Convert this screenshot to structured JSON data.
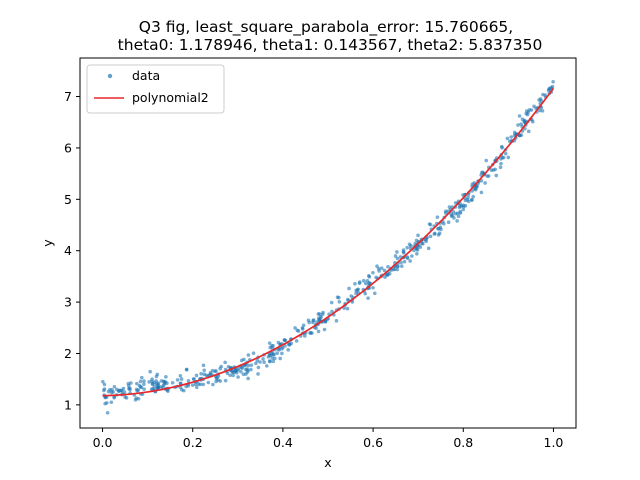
{
  "chart_data": {
    "type": "scatter",
    "title_lines": [
      "Q3 fig, least_square_parabola_error: 15.760665,",
      "theta0: 1.178946,  theta1: 0.143567,  theta2: 5.837350"
    ],
    "xlabel": "x",
    "ylabel": "y",
    "xlim": [
      -0.05,
      1.05
    ],
    "ylim": [
      0.55,
      7.75
    ],
    "xticks": [
      0.0,
      0.2,
      0.4,
      0.6,
      0.8,
      1.0
    ],
    "xtick_labels": [
      "0.0",
      "0.2",
      "0.4",
      "0.6",
      "0.8",
      "1.0"
    ],
    "yticks": [
      1,
      2,
      3,
      4,
      5,
      6,
      7
    ],
    "ytick_labels": [
      "1",
      "2",
      "3",
      "4",
      "5",
      "6",
      "7"
    ],
    "grid": false,
    "legend_placement": "upper-left",
    "series": [
      {
        "name": "data",
        "kind": "scatter",
        "color": "#1f77b4",
        "n_points": 600,
        "x_range": [
          0.0,
          1.0
        ],
        "noise_std": 0.1
      },
      {
        "name": "polynomial2",
        "kind": "line",
        "color": "#e8282b",
        "coefficients": {
          "theta0": 1.178946,
          "theta1": 0.143567,
          "theta2": 5.83735
        }
      }
    ]
  }
}
